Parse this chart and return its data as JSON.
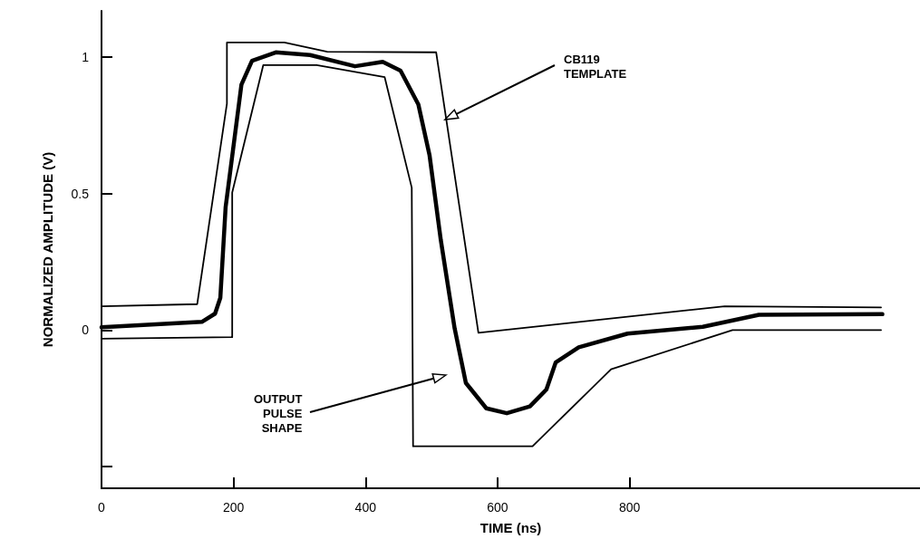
{
  "chart_data": {
    "type": "line",
    "xlabel": "TIME (ns)",
    "ylabel": "NORMALIZED AMPLITUDE (V)",
    "xlim": [
      0,
      1240
    ],
    "xticks": [
      0,
      200,
      400,
      600,
      800
    ],
    "ylim": [
      -0.58,
      1.17
    ],
    "yticks": [
      {
        "value": -0.5,
        "label": null
      },
      0,
      0.5,
      1
    ],
    "grid": false,
    "marker": "none",
    "line_style": "solid",
    "series": [
      {
        "color": "#000000",
        "x": [
          0,
          145,
          190,
          190,
          277,
          342,
          507,
          571,
          944,
          1181
        ],
        "values": [
          0.087,
          0.095,
          0.83,
          1.054,
          1.054,
          1.02,
          1.018,
          -0.01,
          0.087,
          0.083
        ]
      },
      {
        "color": "#000000",
        "x": [
          0,
          152,
          172,
          180,
          188,
          212,
          228,
          264,
          316,
          384,
          426,
          453,
          480,
          497,
          514,
          535,
          552,
          583,
          614,
          649,
          674,
          688,
          723,
          797,
          911,
          996,
          1183
        ],
        "values": [
          0.01,
          0.03,
          0.06,
          0.118,
          0.45,
          0.9,
          0.987,
          1.018,
          1.008,
          0.967,
          0.983,
          0.951,
          0.827,
          0.64,
          0.33,
          0.006,
          -0.194,
          -0.287,
          -0.305,
          -0.28,
          -0.218,
          -0.119,
          -0.063,
          -0.013,
          0.012,
          0.056,
          0.058
        ]
      },
      {
        "color": "#000000",
        "x": [
          0,
          198,
          198,
          245,
          326,
          429,
          470,
          472,
          653,
          772,
          956,
          1181
        ],
        "values": [
          -0.032,
          -0.026,
          0.504,
          0.971,
          0.971,
          0.927,
          0.522,
          -0.426,
          -0.426,
          -0.144,
          0,
          0
        ]
      }
    ],
    "annotations": [
      "CB119\nTEMPLATE",
      "OUTPUT\nPULSE\nSHAPE"
    ]
  }
}
